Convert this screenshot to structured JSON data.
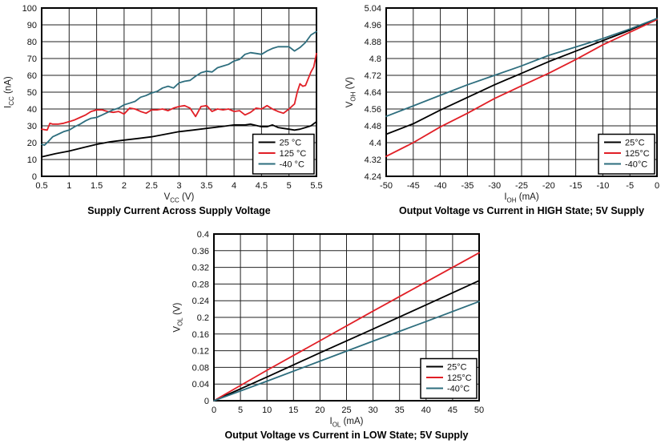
{
  "palette": {
    "black": "#000000",
    "red": "#e11f26",
    "teal": "#2e6e7e",
    "grid": "#222222",
    "frame": "#000000"
  },
  "chart_data": [
    {
      "type": "line",
      "title": "Supply Current Across Supply Voltage",
      "xlabel": {
        "base": "V",
        "sub": "CC",
        "rest": " (V)"
      },
      "ylabel": {
        "base": "I",
        "sub": "CC",
        "rest": " (nA)"
      },
      "xlim": [
        0.5,
        5.5
      ],
      "ylim": [
        0,
        100
      ],
      "grid": true,
      "legend_position": "bottom-right",
      "x_ticks": {
        "values": [
          0.5,
          1,
          1.5,
          2,
          2.5,
          3,
          3.5,
          4,
          4.5,
          5,
          5.5
        ],
        "labels": [
          "0.5",
          "1",
          "1.5",
          "2",
          "2.5",
          "3",
          "3.5",
          "4",
          "4.5",
          "5",
          "5.5"
        ]
      },
      "y_ticks": {
        "values": [
          0,
          10,
          20,
          30,
          40,
          50,
          60,
          70,
          80,
          90,
          100
        ],
        "labels": [
          "0",
          "10",
          "20",
          "30",
          "40",
          "50",
          "60",
          "70",
          "80",
          "90",
          "100"
        ]
      },
      "series": [
        {
          "name": "25 °C",
          "color": "#000000",
          "points": [
            [
              0.5,
              11.5
            ],
            [
              0.75,
              13.5
            ],
            [
              1,
              15
            ],
            [
              1.25,
              17
            ],
            [
              1.5,
              19
            ],
            [
              1.75,
              20.5
            ],
            [
              2,
              21.5
            ],
            [
              2.25,
              22.5
            ],
            [
              2.5,
              23.5
            ],
            [
              2.75,
              25
            ],
            [
              3,
              26.5
            ],
            [
              3.25,
              27.5
            ],
            [
              3.5,
              28.5
            ],
            [
              3.75,
              29.5
            ],
            [
              4,
              30.5
            ],
            [
              4.2,
              30.5
            ],
            [
              4.3,
              31
            ],
            [
              4.5,
              29.5
            ],
            [
              4.6,
              29.5
            ],
            [
              4.7,
              30.5
            ],
            [
              4.8,
              29
            ],
            [
              4.9,
              28.5
            ],
            [
              5,
              28
            ],
            [
              5.1,
              27.5
            ],
            [
              5.2,
              28
            ],
            [
              5.3,
              29
            ],
            [
              5.4,
              30
            ],
            [
              5.5,
              32.5
            ]
          ]
        },
        {
          "name": "125 °C",
          "color": "#e11f26",
          "points": [
            [
              0.5,
              28
            ],
            [
              0.6,
              27.5
            ],
            [
              0.65,
              31.5
            ],
            [
              0.7,
              31
            ],
            [
              0.8,
              31
            ],
            [
              0.9,
              31.5
            ],
            [
              1,
              32.5
            ],
            [
              1.1,
              33.5
            ],
            [
              1.2,
              35
            ],
            [
              1.3,
              36.5
            ],
            [
              1.4,
              38.5
            ],
            [
              1.5,
              39.5
            ],
            [
              1.6,
              39.5
            ],
            [
              1.7,
              38.5
            ],
            [
              1.8,
              38
            ],
            [
              1.9,
              38.5
            ],
            [
              2,
              37
            ],
            [
              2.1,
              40.5
            ],
            [
              2.2,
              40
            ],
            [
              2.3,
              38.5
            ],
            [
              2.4,
              37.5
            ],
            [
              2.5,
              39.5
            ],
            [
              2.6,
              39.5
            ],
            [
              2.7,
              40
            ],
            [
              2.8,
              39
            ],
            [
              2.9,
              40.5
            ],
            [
              3,
              41.5
            ],
            [
              3.1,
              42
            ],
            [
              3.2,
              40.5
            ],
            [
              3.3,
              35.5
            ],
            [
              3.4,
              41.5
            ],
            [
              3.5,
              42
            ],
            [
              3.6,
              38.5
            ],
            [
              3.7,
              40
            ],
            [
              3.8,
              39.5
            ],
            [
              3.9,
              40
            ],
            [
              4,
              38.5
            ],
            [
              4.1,
              39
            ],
            [
              4.2,
              36.5
            ],
            [
              4.3,
              38
            ],
            [
              4.4,
              40.5
            ],
            [
              4.5,
              40
            ],
            [
              4.6,
              42
            ],
            [
              4.7,
              40
            ],
            [
              4.8,
              38.5
            ],
            [
              4.9,
              37.5
            ],
            [
              5,
              40
            ],
            [
              5.1,
              43
            ],
            [
              5.15,
              50
            ],
            [
              5.2,
              55
            ],
            [
              5.25,
              53.5
            ],
            [
              5.3,
              54
            ],
            [
              5.4,
              62
            ],
            [
              5.45,
              65
            ],
            [
              5.5,
              73
            ]
          ]
        },
        {
          "name": "-40 °C",
          "color": "#2e6e7e",
          "points": [
            [
              0.5,
              19
            ],
            [
              0.55,
              18.5
            ],
            [
              0.6,
              20
            ],
            [
              0.7,
              23.5
            ],
            [
              0.8,
              25
            ],
            [
              0.9,
              26.5
            ],
            [
              1,
              27.5
            ],
            [
              1.1,
              29.5
            ],
            [
              1.2,
              31
            ],
            [
              1.3,
              33
            ],
            [
              1.4,
              34.5
            ],
            [
              1.5,
              35
            ],
            [
              1.6,
              36.5
            ],
            [
              1.7,
              38
            ],
            [
              1.8,
              39.5
            ],
            [
              1.9,
              40.5
            ],
            [
              2,
              42.5
            ],
            [
              2.1,
              43.5
            ],
            [
              2.2,
              44.5
            ],
            [
              2.3,
              47
            ],
            [
              2.4,
              48
            ],
            [
              2.5,
              49.5
            ],
            [
              2.6,
              50.5
            ],
            [
              2.7,
              52.5
            ],
            [
              2.8,
              53.5
            ],
            [
              2.9,
              52.5
            ],
            [
              3,
              55.5
            ],
            [
              3.1,
              56.5
            ],
            [
              3.2,
              57
            ],
            [
              3.3,
              59.5
            ],
            [
              3.4,
              61.5
            ],
            [
              3.5,
              62.5
            ],
            [
              3.6,
              62
            ],
            [
              3.7,
              64.5
            ],
            [
              3.8,
              65.5
            ],
            [
              3.9,
              66.5
            ],
            [
              4,
              68.5
            ],
            [
              4.1,
              69.5
            ],
            [
              4.2,
              72.5
            ],
            [
              4.3,
              73.5
            ],
            [
              4.4,
              73
            ],
            [
              4.5,
              72.5
            ],
            [
              4.6,
              74.5
            ],
            [
              4.7,
              76
            ],
            [
              4.8,
              77
            ],
            [
              4.9,
              77
            ],
            [
              5,
              77
            ],
            [
              5.1,
              74.5
            ],
            [
              5.2,
              76.5
            ],
            [
              5.3,
              79.5
            ],
            [
              5.4,
              84
            ],
            [
              5.5,
              86
            ]
          ]
        }
      ]
    },
    {
      "type": "line",
      "title": "Output Voltage vs Current in HIGH State; 5V Supply",
      "xlabel": {
        "base": "I",
        "sub": "OH",
        "rest": " (mA)"
      },
      "ylabel": {
        "base": "V",
        "sub": "OH",
        "rest": " (V)"
      },
      "xlim": [
        -50,
        0
      ],
      "ylim": [
        4.24,
        5.04
      ],
      "grid": true,
      "legend_position": "bottom-right",
      "x_ticks": {
        "values": [
          -50,
          -45,
          -40,
          -35,
          -30,
          -25,
          -20,
          -15,
          -10,
          -5,
          0
        ],
        "labels": [
          "-50",
          "-45",
          "-40",
          "-35",
          "-30",
          "-25",
          "-20",
          "-15",
          "-10",
          "-5",
          "0"
        ]
      },
      "y_ticks": {
        "values": [
          4.24,
          4.32,
          4.4,
          4.48,
          4.56,
          4.64,
          4.72,
          4.8,
          4.88,
          4.96,
          5.04
        ],
        "labels": [
          "4.24",
          "4.32",
          "4.4",
          "4.48",
          "4.56",
          "4.64",
          "4.72",
          "4.8",
          "4.88",
          "4.96",
          "5.04"
        ]
      },
      "series": [
        {
          "name": "25°C",
          "color": "#000000",
          "points": [
            [
              -50,
              4.44
            ],
            [
              -45,
              4.49
            ],
            [
              -40,
              4.555
            ],
            [
              -35,
              4.615
            ],
            [
              -30,
              4.675
            ],
            [
              -25,
              4.73
            ],
            [
              -20,
              4.785
            ],
            [
              -15,
              4.835
            ],
            [
              -10,
              4.885
            ],
            [
              -5,
              4.935
            ],
            [
              0,
              4.99
            ]
          ]
        },
        {
          "name": "125°C",
          "color": "#e11f26",
          "points": [
            [
              -50,
              4.335
            ],
            [
              -45,
              4.4
            ],
            [
              -40,
              4.475
            ],
            [
              -35,
              4.54
            ],
            [
              -30,
              4.61
            ],
            [
              -25,
              4.67
            ],
            [
              -20,
              4.73
            ],
            [
              -15,
              4.795
            ],
            [
              -10,
              4.865
            ],
            [
              -5,
              4.925
            ],
            [
              0,
              4.985
            ]
          ]
        },
        {
          "name": "-40°C",
          "color": "#2e6e7e",
          "points": [
            [
              -50,
              4.525
            ],
            [
              -45,
              4.575
            ],
            [
              -40,
              4.625
            ],
            [
              -35,
              4.675
            ],
            [
              -30,
              4.72
            ],
            [
              -25,
              4.765
            ],
            [
              -20,
              4.815
            ],
            [
              -15,
              4.855
            ],
            [
              -10,
              4.895
            ],
            [
              -5,
              4.94
            ],
            [
              0,
              4.99
            ]
          ]
        }
      ]
    },
    {
      "type": "line",
      "title": "Output Voltage vs Current in LOW State; 5V Supply",
      "xlabel": {
        "base": "I",
        "sub": "OL",
        "rest": " (mA)"
      },
      "ylabel": {
        "base": "V",
        "sub": "OL",
        "rest": " (V)"
      },
      "xlim": [
        0,
        50
      ],
      "ylim": [
        0,
        0.4
      ],
      "grid": true,
      "legend_position": "bottom-right",
      "x_ticks": {
        "values": [
          0,
          5,
          10,
          15,
          20,
          25,
          30,
          35,
          40,
          45,
          50
        ],
        "labels": [
          "0",
          "5",
          "10",
          "15",
          "20",
          "25",
          "30",
          "35",
          "40",
          "45",
          "50"
        ]
      },
      "y_ticks": {
        "values": [
          0,
          0.04,
          0.08,
          0.12,
          0.16,
          0.2,
          0.24,
          0.28,
          0.32,
          0.36,
          0.4
        ],
        "labels": [
          "0",
          "0.04",
          "0.08",
          "0.12",
          "0.16",
          "0.2",
          "0.24",
          "0.28",
          "0.32",
          "0.36",
          "0.4"
        ]
      },
      "series": [
        {
          "name": "25°C",
          "color": "#000000",
          "points": [
            [
              0,
              0
            ],
            [
              10,
              0.057
            ],
            [
              20,
              0.115
            ],
            [
              30,
              0.172
            ],
            [
              40,
              0.23
            ],
            [
              50,
              0.288
            ]
          ]
        },
        {
          "name": "125°C",
          "color": "#e11f26",
          "points": [
            [
              0,
              0
            ],
            [
              10,
              0.073
            ],
            [
              20,
              0.144
            ],
            [
              30,
              0.215
            ],
            [
              40,
              0.285
            ],
            [
              50,
              0.355
            ]
          ]
        },
        {
          "name": "-40°C",
          "color": "#2e6e7e",
          "points": [
            [
              0,
              0
            ],
            [
              10,
              0.047
            ],
            [
              20,
              0.095
            ],
            [
              30,
              0.143
            ],
            [
              40,
              0.19
            ],
            [
              50,
              0.238
            ]
          ]
        }
      ]
    }
  ]
}
